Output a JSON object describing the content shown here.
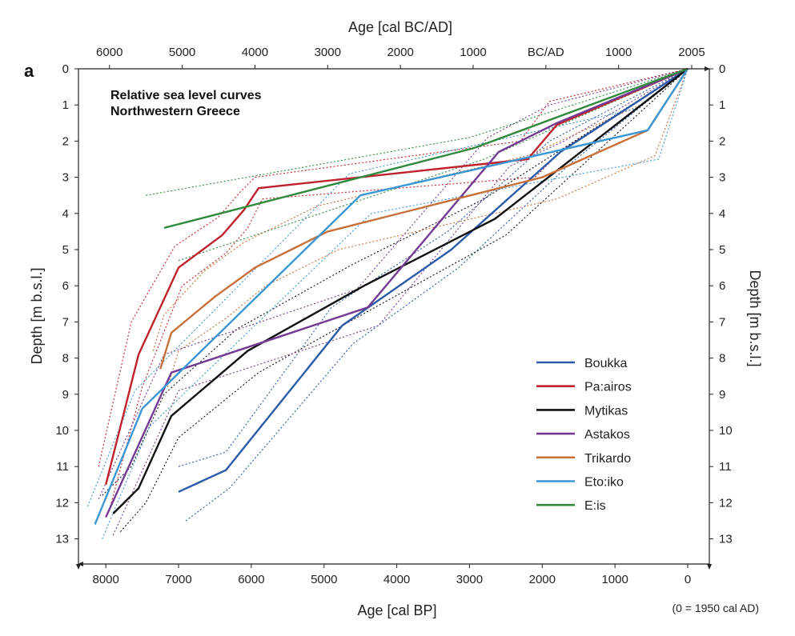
{
  "chart_data": {
    "type": "line",
    "panel_label": "a",
    "title_lines": [
      "Relative sea level curves",
      "Northwestern Greece"
    ],
    "xlabel_bottom": "Age [cal BP]",
    "xlabel_top": "Age [cal BC/AD]",
    "ylabel_left": "Depth [m b.s.l.]",
    "ylabel_right": "Depth [m b.s.l.]",
    "footnote": "(0 = 1950 cal AD)",
    "xlim": [
      8300,
      -50
    ],
    "ylim": [
      0,
      13.8
    ],
    "x_ticks": [
      8000,
      7000,
      6000,
      5000,
      4000,
      3000,
      2000,
      1000,
      0
    ],
    "y_ticks": [
      0,
      1,
      2,
      3,
      4,
      5,
      6,
      7,
      8,
      9,
      10,
      11,
      12,
      13
    ],
    "top_ticks": [
      {
        "label": "6000",
        "bp": 7950
      },
      {
        "label": "5000",
        "bp": 6950
      },
      {
        "label": "4000",
        "bp": 5950
      },
      {
        "label": "3000",
        "bp": 4950
      },
      {
        "label": "2000",
        "bp": 3950
      },
      {
        "label": "1000",
        "bp": 2950
      },
      {
        "label": "BC/AD",
        "bp": 1950
      },
      {
        "label": "1000",
        "bp": 950
      },
      {
        "label": "2005",
        "bp": -55
      }
    ],
    "legend_position": "bottom-right",
    "grid": false,
    "series": [
      {
        "name": "Boukka",
        "color": "#2b5aa8",
        "points": [
          [
            7000,
            11.7
          ],
          [
            6350,
            11.1
          ],
          [
            4750,
            7.1
          ],
          [
            3250,
            5.0
          ],
          [
            1750,
            2.3
          ],
          [
            0,
            0
          ]
        ],
        "upper": [
          [
            7000,
            11.0
          ],
          [
            6350,
            10.6
          ],
          [
            4900,
            6.6
          ],
          [
            3300,
            4.5
          ],
          [
            1900,
            2.0
          ],
          [
            0,
            0
          ]
        ],
        "lower": [
          [
            6900,
            12.5
          ],
          [
            6300,
            11.6
          ],
          [
            4600,
            7.6
          ],
          [
            3150,
            5.5
          ],
          [
            1600,
            2.6
          ],
          [
            0,
            0
          ]
        ]
      },
      {
        "name": "Pa:airos",
        "color": "#c0222c",
        "points": [
          [
            8000,
            11.5
          ],
          [
            7550,
            7.9
          ],
          [
            7000,
            5.5
          ],
          [
            6400,
            4.6
          ],
          [
            6100,
            3.9
          ],
          [
            5900,
            3.3
          ],
          [
            2200,
            2.5
          ],
          [
            1800,
            1.55
          ],
          [
            0,
            0
          ]
        ],
        "upper": [
          [
            8100,
            11.0
          ],
          [
            7650,
            7.0
          ],
          [
            7050,
            4.9
          ],
          [
            6450,
            4.1
          ],
          [
            6150,
            3.4
          ],
          [
            5950,
            3.0
          ],
          [
            2300,
            2.0
          ],
          [
            1900,
            0.9
          ],
          [
            0,
            0
          ]
        ],
        "lower": [
          [
            7950,
            12.2
          ],
          [
            7500,
            8.8
          ],
          [
            6950,
            6.0
          ],
          [
            6350,
            5.1
          ],
          [
            6050,
            4.4
          ],
          [
            5850,
            3.6
          ],
          [
            2100,
            3.0
          ],
          [
            1700,
            2.2
          ],
          [
            0,
            0
          ]
        ]
      },
      {
        "name": "Mytikas",
        "color": "#111111",
        "points": [
          [
            7900,
            12.3
          ],
          [
            7550,
            11.6
          ],
          [
            7100,
            9.6
          ],
          [
            6050,
            7.8
          ],
          [
            4450,
            6.0
          ],
          [
            2650,
            4.15
          ],
          [
            0,
            0
          ]
        ],
        "upper": [
          [
            8050,
            11.8
          ],
          [
            7650,
            11.0
          ],
          [
            7200,
            9.0
          ],
          [
            6200,
            7.2
          ],
          [
            4600,
            5.4
          ],
          [
            2800,
            3.6
          ],
          [
            0,
            0
          ]
        ],
        "lower": [
          [
            7800,
            12.8
          ],
          [
            7450,
            12.0
          ],
          [
            7000,
            10.2
          ],
          [
            5900,
            8.4
          ],
          [
            4300,
            6.6
          ],
          [
            2500,
            4.6
          ],
          [
            0,
            0
          ]
        ]
      },
      {
        "name": "Astakos",
        "color": "#733b93",
        "points": [
          [
            8000,
            12.4
          ],
          [
            7100,
            8.4
          ],
          [
            4400,
            6.6
          ],
          [
            2600,
            2.3
          ],
          [
            1800,
            1.5
          ],
          [
            0,
            0
          ]
        ],
        "upper": [
          [
            8100,
            11.9
          ],
          [
            7200,
            7.9
          ],
          [
            4550,
            6.1
          ],
          [
            2750,
            1.9
          ],
          [
            1900,
            1.0
          ],
          [
            0,
            0
          ]
        ],
        "lower": [
          [
            7900,
            12.9
          ],
          [
            7000,
            8.9
          ],
          [
            4250,
            7.1
          ],
          [
            2450,
            2.7
          ],
          [
            1700,
            2.0
          ],
          [
            0,
            0
          ]
        ]
      },
      {
        "name": "Trikardo",
        "color": "#c8703a",
        "points": [
          [
            7250,
            8.3
          ],
          [
            7100,
            7.3
          ],
          [
            6500,
            6.3
          ],
          [
            5950,
            5.5
          ],
          [
            4950,
            4.5
          ],
          [
            2000,
            3.0
          ],
          [
            550,
            1.7
          ],
          [
            0,
            0
          ]
        ],
        "upper": [
          [
            7350,
            7.8
          ],
          [
            7200,
            6.8
          ],
          [
            6650,
            5.6
          ],
          [
            6100,
            4.8
          ],
          [
            5100,
            3.8
          ],
          [
            2200,
            2.4
          ],
          [
            650,
            1.0
          ],
          [
            0,
            0
          ]
        ],
        "lower": [
          [
            7150,
            8.8
          ],
          [
            7000,
            7.8
          ],
          [
            6350,
            6.9
          ],
          [
            5800,
            6.0
          ],
          [
            4800,
            5.0
          ],
          [
            1800,
            3.6
          ],
          [
            450,
            2.4
          ],
          [
            0,
            0
          ]
        ]
      },
      {
        "name": "Eto:iko",
        "color": "#3b97d3",
        "points": [
          [
            8150,
            12.6
          ],
          [
            7500,
            9.4
          ],
          [
            4500,
            3.5
          ],
          [
            550,
            1.7
          ],
          [
            0,
            0
          ]
        ],
        "upper": [
          [
            8250,
            12.1
          ],
          [
            7600,
            8.9
          ],
          [
            4650,
            2.9
          ],
          [
            700,
            1.1
          ],
          [
            0,
            0
          ]
        ],
        "lower": [
          [
            8050,
            13.0
          ],
          [
            7400,
            9.9
          ],
          [
            4350,
            4.0
          ],
          [
            400,
            2.5
          ],
          [
            0,
            0
          ]
        ]
      },
      {
        "name": "E:is",
        "color": "#2f8a3d",
        "points": [
          [
            7200,
            4.4
          ],
          [
            2950,
            2.2
          ],
          [
            0,
            0
          ]
        ],
        "upper": [
          [
            7450,
            3.5
          ],
          [
            3000,
            1.9
          ],
          [
            0,
            0
          ]
        ],
        "lower": [
          [
            7000,
            5.3
          ],
          [
            2800,
            2.5
          ],
          [
            0,
            0
          ]
        ]
      }
    ]
  }
}
